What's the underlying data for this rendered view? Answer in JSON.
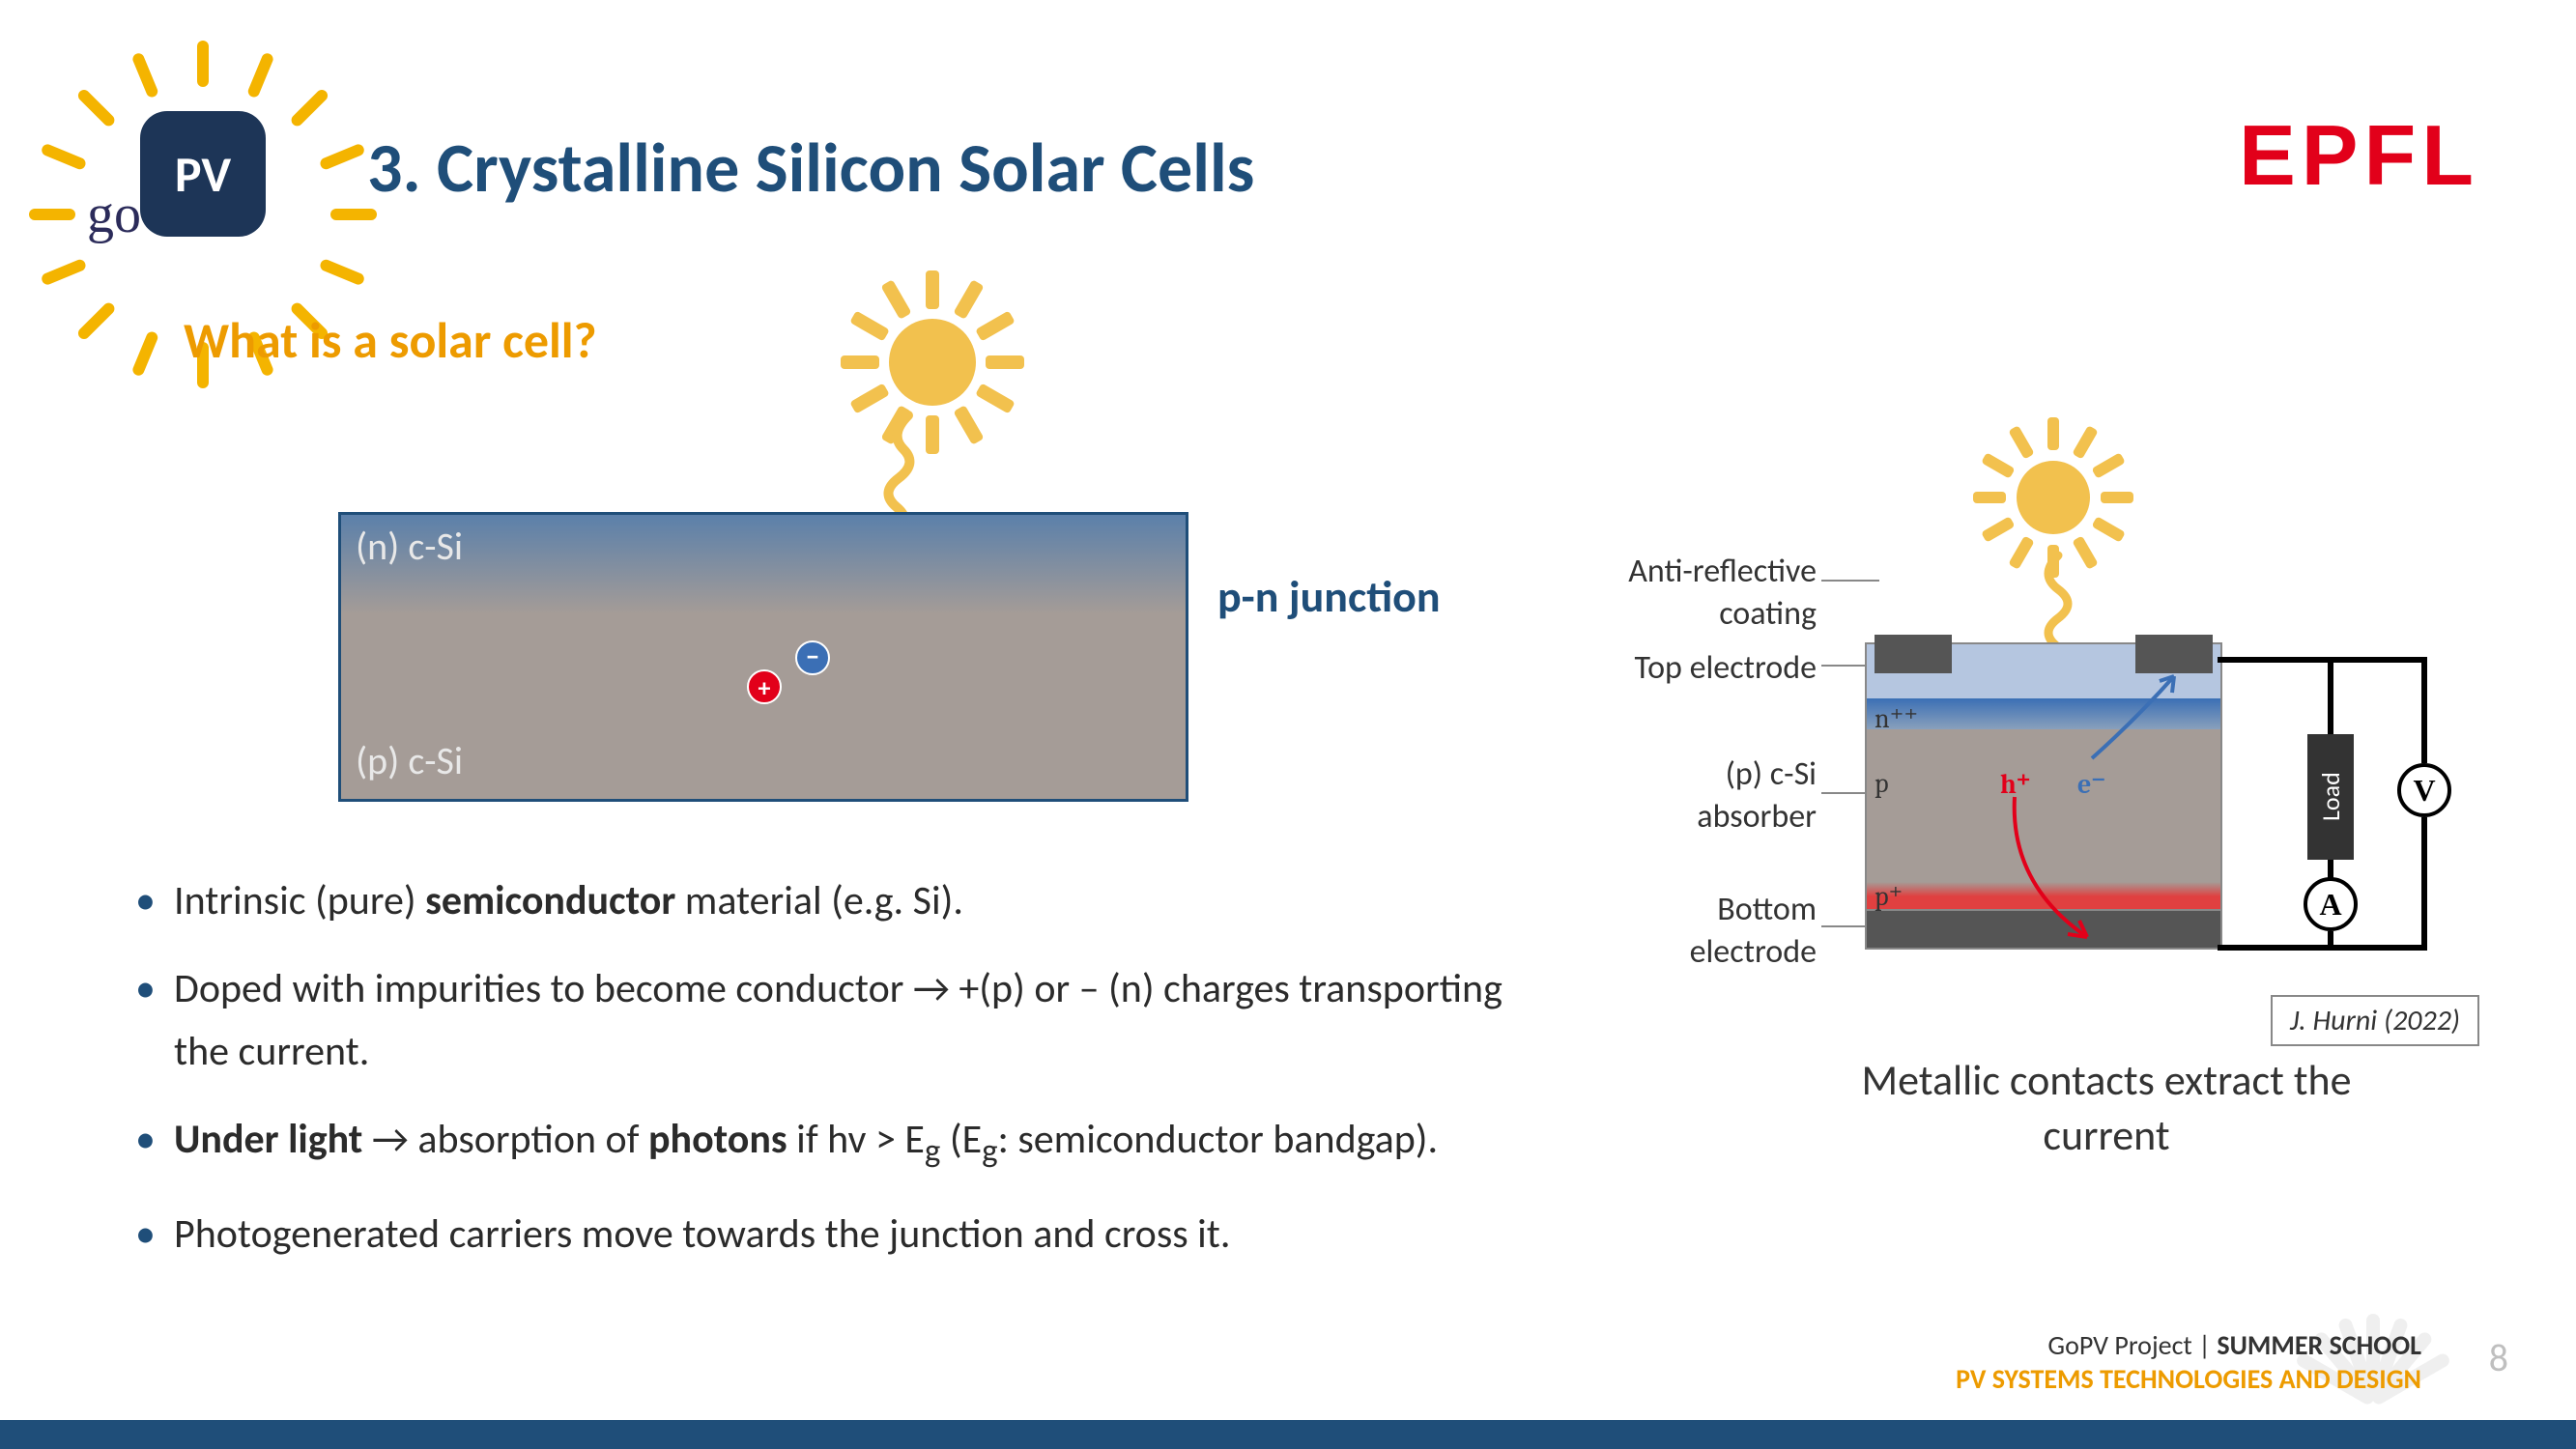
{
  "header": {
    "title": "3. Crystalline Silicon Solar Cells",
    "brand": "EPFL",
    "logo_text": "PV",
    "logo_script": "go",
    "subtitle": "What is a solar cell?"
  },
  "colors": {
    "title": "#1f4e79",
    "brand": "#e2001a",
    "accent": "#ed9b00",
    "sun": "#f2c14e",
    "n_layer_top": "#5b80aa",
    "p_layer": "#a59c97",
    "plus_charge": "#e2001a",
    "minus_charge": "#3b6fb5",
    "electrode": "#555555",
    "ar_coating": "#b5c6e0",
    "pplus_glow": "#e04040",
    "wire": "#000000",
    "footer_bar": "#1f4e79",
    "pagenum": "#bfbfbf"
  },
  "left_diagram": {
    "n_label": "(n) c-Si",
    "p_label": "(p) c-Si",
    "plus": "+",
    "minus": "–",
    "caption": "p-n junction"
  },
  "bullets": [
    "Intrinsic (pure) <b>semiconductor</b> material (e.g. Si).",
    "Doped with impurities to become conductor → +(p) or – (n) charges transporting the current.",
    "<b>Under light</b> → absorption of <b>photons</b> if hv > E<sub>g</sub> (E<sub>g</sub>: semiconductor bandgap).",
    "Photogenerated carriers move towards the junction and cross it."
  ],
  "right_diagram": {
    "side_labels": {
      "ar": "Anti-reflective\ncoating",
      "top_electrode": "Top electrode",
      "absorber": "(p) c-Si\nabsorber",
      "bottom_electrode": "Bottom\nelectrode"
    },
    "layer_labels": {
      "npp": "n⁺⁺",
      "p": "p",
      "pplus": "p⁺"
    },
    "hplus": "h⁺",
    "eminus": "e⁻",
    "load": "Load",
    "ammeter": "A",
    "voltmeter": "V",
    "citation": "J. Hurni (2022)",
    "caption": "Metallic contacts extract the\ncurrent"
  },
  "footer": {
    "line1_a": "GoPV Project",
    "line1_b": "SUMMER SCHOOL",
    "line2": "PV SYSTEMS TECHNOLOGIES AND DESIGN",
    "page": "8"
  },
  "sun_rays": 12,
  "logo_rays": 16
}
